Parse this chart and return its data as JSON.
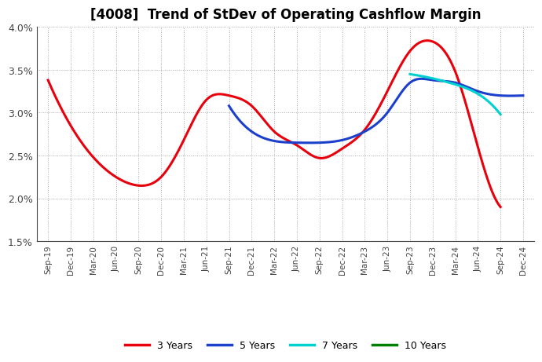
{
  "title": "[4008]  Trend of StDev of Operating Cashflow Margin",
  "ylim": [
    0.015,
    0.04
  ],
  "yticks": [
    0.015,
    0.02,
    0.025,
    0.03,
    0.035,
    0.04
  ],
  "ytick_labels": [
    "1.5%",
    "2.0%",
    "2.5%",
    "3.0%",
    "3.5%",
    "4.0%"
  ],
  "xtick_labels": [
    "Sep-19",
    "Dec-19",
    "Mar-20",
    "Jun-20",
    "Sep-20",
    "Dec-20",
    "Mar-21",
    "Jun-21",
    "Sep-21",
    "Dec-21",
    "Mar-22",
    "Jun-22",
    "Sep-22",
    "Dec-22",
    "Mar-23",
    "Jun-23",
    "Sep-23",
    "Dec-23",
    "Mar-24",
    "Jun-24",
    "Sep-24",
    "Dec-24"
  ],
  "series": {
    "3 Years": {
      "color": "#e8000d",
      "linewidth": 2.2,
      "x_indices": [
        0,
        1,
        2,
        3,
        4,
        5,
        6,
        7,
        8,
        9,
        10,
        11,
        12,
        13,
        14,
        15,
        16,
        17,
        18,
        19,
        20
      ],
      "y": [
        0.0338,
        0.0285,
        0.0248,
        0.0225,
        0.0215,
        0.0225,
        0.0268,
        0.0315,
        0.032,
        0.0308,
        0.0278,
        0.0262,
        0.0247,
        0.0258,
        0.028,
        0.0325,
        0.0372,
        0.0383,
        0.0348,
        0.026,
        0.019
      ]
    },
    "5 Years": {
      "color": "#1c3fcc",
      "linewidth": 2.2,
      "x_indices": [
        8,
        9,
        10,
        11,
        12,
        13,
        14,
        15,
        16,
        17,
        18,
        19,
        20,
        21
      ],
      "y": [
        0.0308,
        0.0278,
        0.0267,
        0.0265,
        0.0265,
        0.0268,
        0.0278,
        0.03,
        0.0335,
        0.0338,
        0.0335,
        0.0325,
        0.032,
        0.032
      ]
    },
    "7 Years": {
      "color": "#00d0d0",
      "linewidth": 2.2,
      "x_indices": [
        16,
        17,
        18,
        19,
        20
      ],
      "y": [
        0.0345,
        0.034,
        0.0333,
        0.0322,
        0.0298
      ]
    },
    "10 Years": {
      "color": "#008000",
      "linewidth": 2.2,
      "x_indices": [],
      "y": []
    }
  },
  "legend_labels": [
    "3 Years",
    "5 Years",
    "7 Years",
    "10 Years"
  ],
  "legend_colors": [
    "#e8000d",
    "#1c3fcc",
    "#00d0d0",
    "#008000"
  ],
  "background_color": "#ffffff",
  "grid_color": "#aaaaaa",
  "title_fontsize": 12,
  "title_fontweight": "bold"
}
